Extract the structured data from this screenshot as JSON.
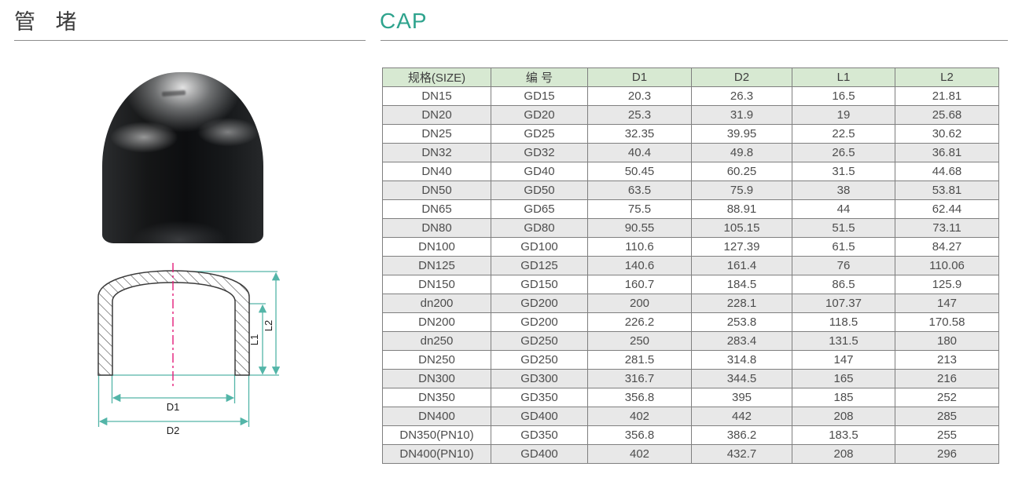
{
  "page": {
    "title_cn": "管 堵",
    "title_en": "CAP"
  },
  "colors": {
    "accent_teal": "#2ea38d",
    "table_header_bg": "#d7e9d2",
    "table_row_alt": "#e8e8e8",
    "table_border": "#7f7f7f",
    "diagram_dimension_line": "#53b5a8",
    "diagram_centerline": "#e31c79"
  },
  "diagram": {
    "d1_label": "D1",
    "d2_label": "D2",
    "l1_label": "L1",
    "l2_label": "L2"
  },
  "table": {
    "headers": [
      "规格(SIZE)",
      "编 号",
      "D1",
      "D2",
      "L1",
      "L2"
    ],
    "rows": [
      [
        "DN15",
        "GD15",
        "20.3",
        "26.3",
        "16.5",
        "21.81"
      ],
      [
        "DN20",
        "GD20",
        "25.3",
        "31.9",
        "19",
        "25.68"
      ],
      [
        "DN25",
        "GD25",
        "32.35",
        "39.95",
        "22.5",
        "30.62"
      ],
      [
        "DN32",
        "GD32",
        "40.4",
        "49.8",
        "26.5",
        "36.81"
      ],
      [
        "DN40",
        "GD40",
        "50.45",
        "60.25",
        "31.5",
        "44.68"
      ],
      [
        "DN50",
        "GD50",
        "63.5",
        "75.9",
        "38",
        "53.81"
      ],
      [
        "DN65",
        "GD65",
        "75.5",
        "88.91",
        "44",
        "62.44"
      ],
      [
        "DN80",
        "GD80",
        "90.55",
        "105.15",
        "51.5",
        "73.11"
      ],
      [
        "DN100",
        "GD100",
        "110.6",
        "127.39",
        "61.5",
        "84.27"
      ],
      [
        "DN125",
        "GD125",
        "140.6",
        "161.4",
        "76",
        "110.06"
      ],
      [
        "DN150",
        "GD150",
        "160.7",
        "184.5",
        "86.5",
        "125.9"
      ],
      [
        "dn200",
        "GD200",
        "200",
        "228.1",
        "107.37",
        "147"
      ],
      [
        "DN200",
        "GD200",
        "226.2",
        "253.8",
        "118.5",
        "170.58"
      ],
      [
        "dn250",
        "GD250",
        "250",
        "283.4",
        "131.5",
        "180"
      ],
      [
        "DN250",
        "GD250",
        "281.5",
        "314.8",
        "147",
        "213"
      ],
      [
        "DN300",
        "GD300",
        "316.7",
        "344.5",
        "165",
        "216"
      ],
      [
        "DN350",
        "GD350",
        "356.8",
        "395",
        "185",
        "252"
      ],
      [
        "DN400",
        "GD400",
        "402",
        "442",
        "208",
        "285"
      ],
      [
        "DN350(PN10)",
        "GD350",
        "356.8",
        "386.2",
        "183.5",
        "255"
      ],
      [
        "DN400(PN10)",
        "GD400",
        "402",
        "432.7",
        "208",
        "296"
      ]
    ]
  }
}
